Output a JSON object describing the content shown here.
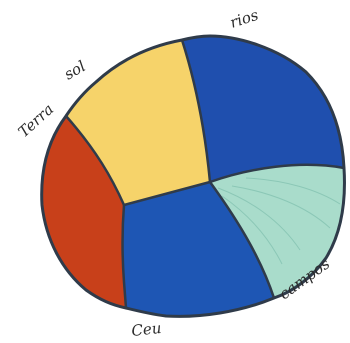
{
  "diagram": {
    "kind": "hand-drawn pie sketch",
    "outline_color": "#2f3b4a",
    "segments": [
      {
        "name": "segment-terra",
        "label": "Terra",
        "color": "#c8401a"
      },
      {
        "name": "segment-sol",
        "label": "sol",
        "color": "#f6d36a"
      },
      {
        "name": "segment-rios",
        "label": "rios",
        "color": "#1f4fae"
      },
      {
        "name": "segment-campos",
        "label": "campos",
        "color": "#a9dccb"
      },
      {
        "name": "segment-ceu",
        "label": "Ceu",
        "color": "#1e56b4"
      }
    ]
  }
}
